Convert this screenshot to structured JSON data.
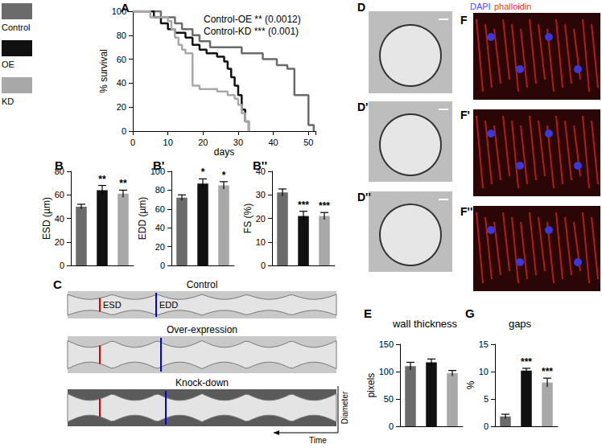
{
  "chart_data": [
    {
      "panel_label": "A",
      "type": "line",
      "line_style": "step",
      "x_label": "days",
      "y_label": "% survival",
      "xlim": [
        0,
        52
      ],
      "xticks": [
        0,
        10,
        20,
        30,
        40,
        50
      ],
      "ylim": [
        0,
        100
      ],
      "yticks": [
        0,
        20,
        40,
        60,
        80,
        100
      ],
      "legend": "top-left",
      "grid": false,
      "annotations": [
        "Control-OE ** (0.0012)",
        "Control-KD *** (0.001)"
      ],
      "series": [
        {
          "name": "Control",
          "color": "#6b6b6b",
          "x": [
            0,
            8,
            12,
            14,
            17,
            19,
            22,
            31,
            37,
            41,
            44,
            46,
            50,
            51.5
          ],
          "values": [
            100,
            95,
            90,
            85,
            80,
            75,
            70,
            65,
            60,
            55,
            52,
            30,
            5,
            0
          ]
        },
        {
          "name": "OE",
          "color": "#111111",
          "x": [
            0,
            6,
            8,
            10,
            12,
            15,
            17,
            19,
            21,
            24,
            26,
            27,
            28,
            29,
            30,
            31,
            32,
            33
          ],
          "values": [
            100,
            95,
            90,
            85,
            82,
            78,
            72,
            68,
            65,
            62,
            58,
            52,
            45,
            38,
            30,
            18,
            8,
            0
          ]
        },
        {
          "name": "KD",
          "color": "#a8a8a8",
          "x": [
            0,
            5,
            10,
            11,
            12,
            13,
            14,
            15,
            17,
            19,
            24,
            27,
            29,
            30,
            31,
            32,
            33
          ],
          "values": [
            100,
            95,
            92,
            85,
            78,
            72,
            68,
            65,
            38,
            35,
            33,
            30,
            27,
            22,
            15,
            8,
            0
          ]
        }
      ]
    },
    {
      "panel_label": "B",
      "type": "bar",
      "y_label": "ESD (µm)",
      "tick_labels": "y",
      "grid": false,
      "categories": [
        "Control",
        "OE",
        "KD"
      ],
      "values": [
        50,
        64,
        61
      ],
      "errors": [
        2,
        4,
        3
      ],
      "annotations": [
        null,
        "**",
        "**"
      ],
      "colors": [
        "#6b6b6b",
        "#111111",
        "#a8a8a8"
      ],
      "ylim": [
        0,
        80
      ],
      "yticks": [
        0,
        20,
        40,
        60,
        80
      ]
    },
    {
      "panel_label": "B'",
      "type": "bar",
      "y_label": "EDD (µm)",
      "tick_labels": "y",
      "grid": false,
      "categories": [
        "Control",
        "OE",
        "KD"
      ],
      "values": [
        72,
        87,
        85
      ],
      "errors": [
        3,
        5,
        4
      ],
      "annotations": [
        null,
        "*",
        "*"
      ],
      "colors": [
        "#6b6b6b",
        "#111111",
        "#a8a8a8"
      ],
      "ylim": [
        0,
        100
      ],
      "yticks": [
        0,
        20,
        40,
        60,
        80,
        100
      ]
    },
    {
      "panel_label": "B''",
      "type": "bar",
      "y_label": "FS (%)",
      "tick_labels": "y",
      "grid": false,
      "categories": [
        "Control",
        "OE",
        "KD"
      ],
      "values": [
        31,
        21,
        21
      ],
      "errors": [
        1.5,
        2,
        1.5
      ],
      "annotations": [
        null,
        "***",
        "***"
      ],
      "colors": [
        "#6b6b6b",
        "#111111",
        "#a8a8a8"
      ],
      "ylim": [
        0,
        40
      ],
      "yticks": [
        0,
        10,
        20,
        30,
        40
      ]
    },
    {
      "panel_label": "E",
      "type": "bar",
      "title": "wall thickness",
      "y_label": "pixels",
      "tick_labels": "y",
      "grid": false,
      "categories": [
        "Control",
        "OE",
        "KD"
      ],
      "values": [
        110,
        117,
        97
      ],
      "errors": [
        7,
        6,
        5
      ],
      "colors": [
        "#6b6b6b",
        "#111111",
        "#a8a8a8"
      ],
      "ylim": [
        0,
        150
      ],
      "yticks": [
        0,
        50,
        100,
        150
      ]
    },
    {
      "panel_label": "G",
      "type": "bar",
      "title": "gaps",
      "y_label": "%",
      "tick_labels": "y",
      "grid": false,
      "categories": [
        "Control",
        "OE",
        "KD"
      ],
      "values": [
        1.8,
        10.2,
        8
      ],
      "errors": [
        0.4,
        0.4,
        0.8
      ],
      "annotations": [
        null,
        "***",
        "***"
      ],
      "colors": [
        "#6b6b6b",
        "#111111",
        "#a8a8a8"
      ],
      "ylim": [
        0,
        15
      ],
      "yticks": [
        0,
        5,
        10,
        15
      ]
    }
  ],
  "panels": {
    "C": {
      "panel_label": "C",
      "rows": [
        "Control",
        "Over-expression",
        "Knock-down"
      ],
      "markers": [
        "ESD",
        "EDD"
      ],
      "axis_labels": [
        "Diameter",
        "Time"
      ]
    },
    "D": {
      "panel_labels": [
        "D",
        "D'",
        "D''"
      ]
    },
    "F": {
      "panel_labels": [
        "F",
        "F'",
        "F''"
      ],
      "stains": [
        "DAPI",
        "phalloidin"
      ]
    }
  }
}
